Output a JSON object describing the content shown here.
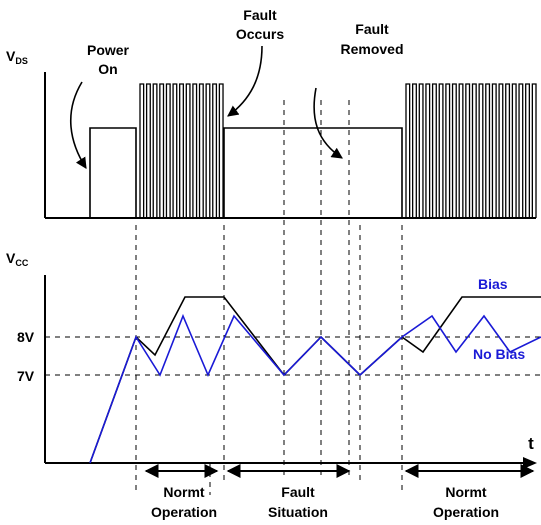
{
  "axis_labels": {
    "vds_main": "V",
    "vds_sub": "DS",
    "vcc_main": "V",
    "vcc_sub": "CC",
    "time": "t"
  },
  "levels": {
    "v8": "8V",
    "v7": "7V"
  },
  "annotations": {
    "power_on_line1": "Power",
    "power_on_line2": "On",
    "fault_occurs_line1": "Fault",
    "fault_occurs_line2": "Occurs",
    "fault_removed_line1": "Fault",
    "fault_removed_line2": "Removed"
  },
  "legend": {
    "bias": "Bias",
    "no_bias": "No Bias"
  },
  "phases": {
    "normal_1_line1": "Normt",
    "normal_1_line2": "Operation",
    "fault_line1": "Fault",
    "fault_line2": "Situation",
    "normal_2_line1": "Normt",
    "normal_2_line2": "Operation"
  },
  "colors": {
    "black": "#000000",
    "blue": "#1a1ad6"
  }
}
